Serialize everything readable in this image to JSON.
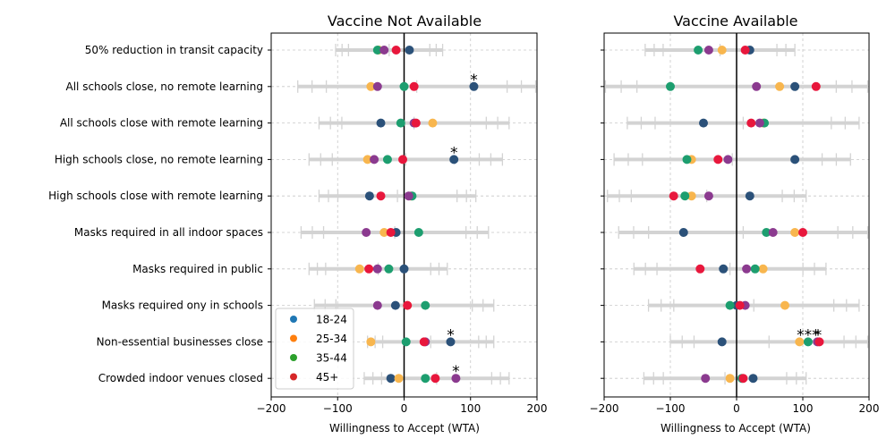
{
  "chart_data": [
    {
      "type": "scatter",
      "title": "Vaccine Not Available",
      "xlabel": "Willingness to Accept (WTA)",
      "ylabel": "",
      "xlim": [
        -200,
        200
      ],
      "xticks": [
        "−200",
        "−100",
        "0",
        "100",
        "200"
      ],
      "grid": true,
      "categories": [
        "50% reduction in transit capacity",
        "All schools close, no remote learning",
        "All schools close with remote learning",
        "High schools close, no remote learning",
        "High schools close with remote learning",
        "Masks required in all indoor spaces",
        "Masks required in public",
        "Masks required ony in schools",
        "Non-essential businesses close",
        "Crowded indoor venues closed"
      ],
      "ranges": [
        [
          -103,
          58
        ],
        [
          -160,
          198
        ],
        [
          -128,
          158
        ],
        [
          -143,
          148
        ],
        [
          -128,
          108
        ],
        [
          -155,
          127
        ],
        [
          -143,
          65
        ],
        [
          -135,
          135
        ],
        [
          -55,
          135
        ],
        [
          -60,
          158
        ]
      ],
      "series": [
        {
          "name": "18-24",
          "values": [
            8,
            105,
            -35,
            75,
            -52,
            -12,
            0,
            -13,
            70,
            -20
          ]
        },
        {
          "name": "25-34",
          "values": [
            -38,
            -50,
            43,
            -55,
            10,
            -30,
            -67,
            5,
            -50,
            -8
          ]
        },
        {
          "name": "35-44",
          "values": [
            -40,
            0,
            -5,
            -25,
            12,
            22,
            -23,
            32,
            3,
            32
          ]
        },
        {
          "name": "45+",
          "values": [
            -30,
            -40,
            15,
            -45,
            7,
            -57,
            -40,
            -40,
            32,
            78
          ]
        },
        {
          "name": "",
          "values": [
            -12,
            15,
            18,
            -2,
            -35,
            -20,
            -53,
            5,
            30,
            47
          ]
        }
      ],
      "annotations": [
        {
          "category": "All schools close, no remote learning",
          "x": 105,
          "text": "*"
        },
        {
          "category": "High schools close, no remote learning",
          "x": 75,
          "text": "*"
        },
        {
          "category": "Non-essential businesses close",
          "x": 70,
          "text": "*"
        },
        {
          "category": "Crowded indoor venues closed",
          "x": 78,
          "text": "*"
        }
      ],
      "legend": {
        "placement": "bottom-left",
        "entries": [
          "18-24",
          "25-34",
          "35-44",
          "45+"
        ]
      }
    },
    {
      "type": "scatter",
      "title": "Vaccine Available",
      "xlabel": "Willingness to Accept (WTA)",
      "ylabel": "",
      "xlim": [
        -200,
        200
      ],
      "xticks": [
        "−200",
        "−100",
        "0",
        "100",
        "200"
      ],
      "grid": true,
      "categories": [
        "50% reduction in transit capacity",
        "All schools close, no remote learning",
        "All schools close with remote learning",
        "High schools close, no remote learning",
        "High schools close with remote learning",
        "Masks required in all indoor spaces",
        "Masks required in public",
        "Masks required ony in schools",
        "Non-essential businesses close",
        "Crowded indoor venues closed"
      ],
      "ranges": [
        [
          -138,
          88
        ],
        [
          -198,
          198
        ],
        [
          -165,
          185
        ],
        [
          -185,
          172
        ],
        [
          -195,
          105
        ],
        [
          -178,
          198
        ],
        [
          -155,
          135
        ],
        [
          -133,
          185
        ],
        [
          -100,
          198
        ],
        [
          -140,
          105
        ]
      ],
      "series": [
        {
          "name": "18-24",
          "values": [
            20,
            88,
            -50,
            88,
            20,
            -80,
            -20,
            0,
            -22,
            25
          ]
        },
        {
          "name": "25-34",
          "values": [
            -22,
            65,
            40,
            -68,
            -68,
            88,
            40,
            73,
            95,
            -10
          ]
        },
        {
          "name": "35-44",
          "values": [
            -58,
            -100,
            42,
            -75,
            -78,
            45,
            28,
            -10,
            108,
            8
          ]
        },
        {
          "name": "45+",
          "values": [
            -42,
            30,
            35,
            -13,
            -42,
            55,
            15,
            13,
            122,
            -47
          ]
        },
        {
          "name": "",
          "values": [
            13,
            120,
            22,
            -28,
            -95,
            100,
            -55,
            5,
            125,
            10
          ]
        }
      ],
      "annotations": [
        {
          "category": "Non-essential businesses close",
          "x": 108,
          "text": "***"
        },
        {
          "category": "Non-essential businesses close",
          "x": 123,
          "text": "*"
        }
      ]
    }
  ],
  "colors": {
    "series": [
      "#2b5179",
      "#f8b64e",
      "#1d9e6f",
      "#8b3a8f",
      "#e8173c"
    ],
    "legend": [
      "#1f77b4",
      "#ff7f0e",
      "#2ca02c",
      "#d62728"
    ],
    "ci": "#d3d3d3",
    "grid": "#c8c8c8"
  }
}
